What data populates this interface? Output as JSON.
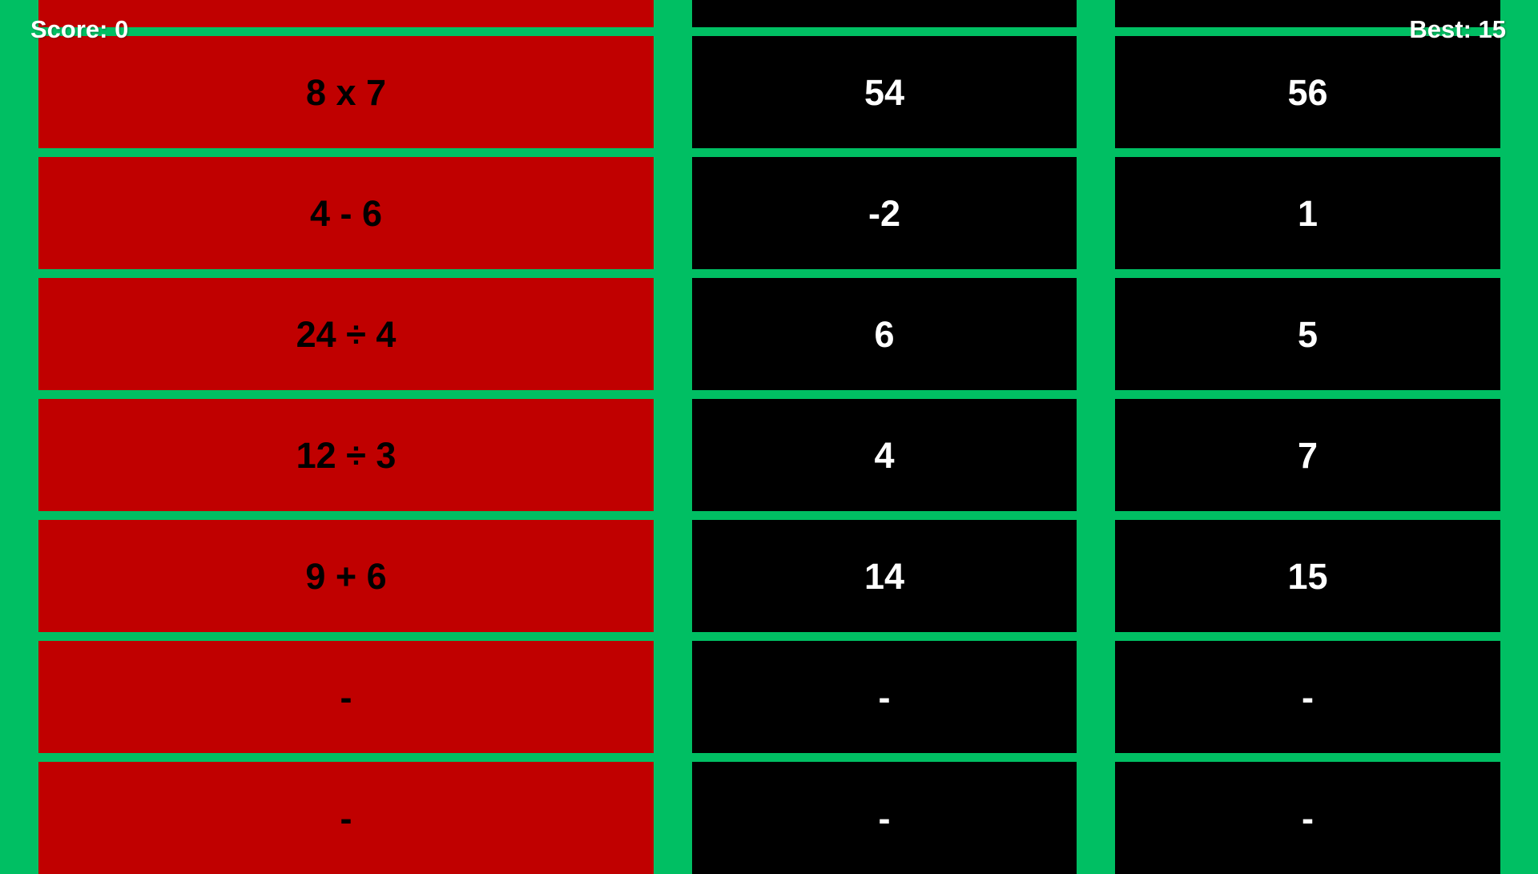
{
  "hud": {
    "score": "Score: 0",
    "best": "Best: 15"
  },
  "colors": {
    "background": "#00BF63",
    "problem_box": "#C00000",
    "answer_box": "#000000",
    "problem_text": "#000000",
    "answer_text": "#FFFFFF",
    "hud_text": "#FFFFFF"
  },
  "board": {
    "rows": [
      {
        "problem": "",
        "left_answer": "",
        "right_answer": ""
      },
      {
        "problem": "8 x 7",
        "left_answer": "54",
        "right_answer": "56"
      },
      {
        "problem": "4 - 6",
        "left_answer": "-2",
        "right_answer": "1"
      },
      {
        "problem": "24 ÷ 4",
        "left_answer": "6",
        "right_answer": "5"
      },
      {
        "problem": "12 ÷ 3",
        "left_answer": "4",
        "right_answer": "7"
      },
      {
        "problem": "9 + 6",
        "left_answer": "14",
        "right_answer": "15"
      },
      {
        "problem": "-",
        "left_answer": "-",
        "right_answer": "-"
      },
      {
        "problem": "-",
        "left_answer": "-",
        "right_answer": "-"
      }
    ]
  }
}
